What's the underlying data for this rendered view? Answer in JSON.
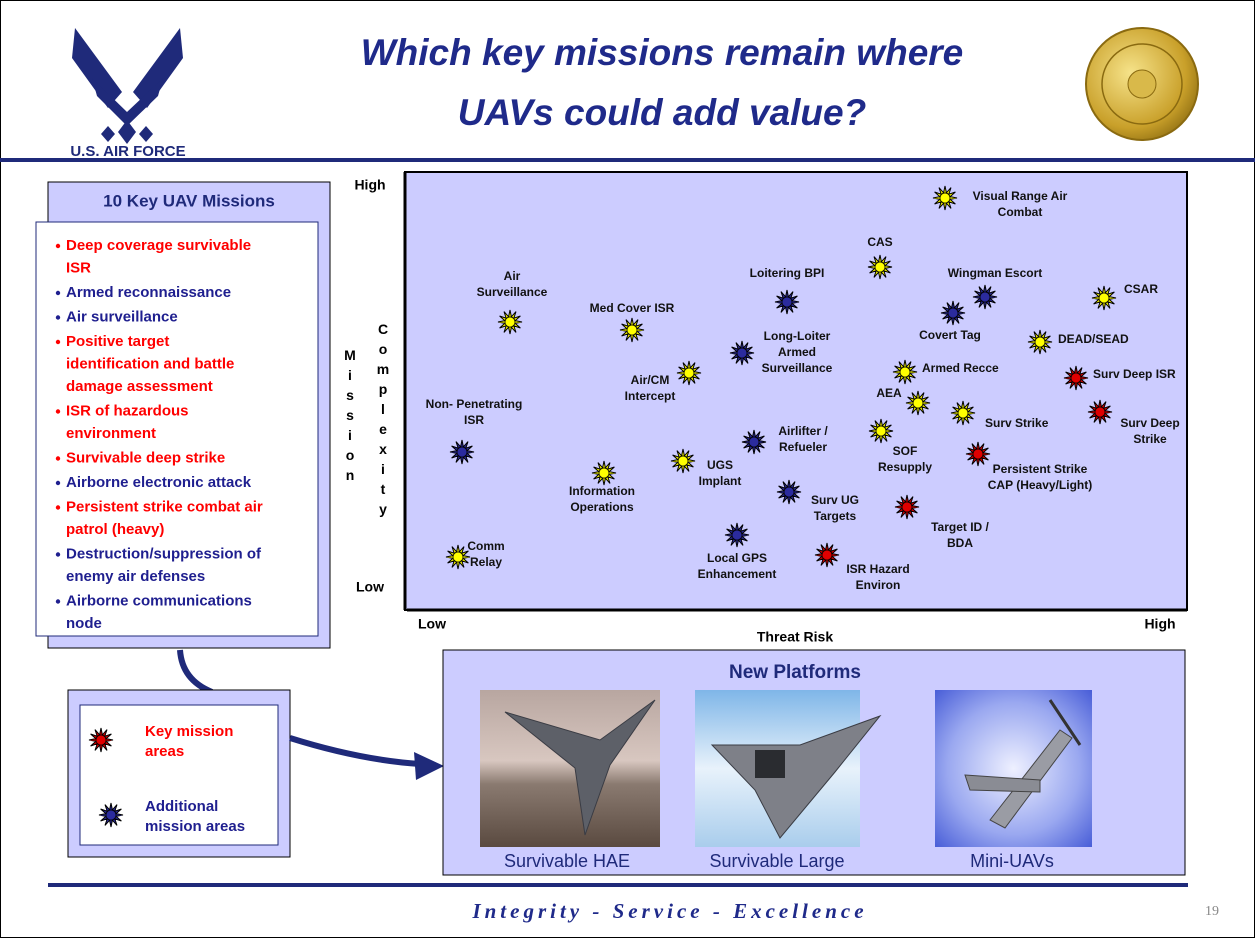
{
  "header": {
    "title": [
      "Which key missions remain where",
      "UAVs could add value?"
    ],
    "logo_text": "U.S. AIR FORCE"
  },
  "missions": {
    "title": "10 Key UAV Missions",
    "items": [
      {
        "lines": [
          "Deep coverage survivable",
          "ISR"
        ],
        "color": "#ff0000"
      },
      {
        "lines": [
          "Armed reconnaissance"
        ],
        "color": "#1f1f8f"
      },
      {
        "lines": [
          "Air surveillance"
        ],
        "color": "#1f1f8f"
      },
      {
        "lines": [
          "Positive target",
          "identification and battle",
          "damage assessment"
        ],
        "color": "#ff0000"
      },
      {
        "lines": [
          "ISR of hazardous",
          "environment"
        ],
        "color": "#ff0000"
      },
      {
        "lines": [
          "Survivable deep strike"
        ],
        "color": "#ff0000"
      },
      {
        "lines": [
          "Airborne electronic attack"
        ],
        "color": "#1f1f8f"
      },
      {
        "lines": [
          "Persistent strike combat air",
          "patrol (heavy)"
        ],
        "color": "#ff0000"
      },
      {
        "lines": [
          "Destruction/suppression of",
          "enemy air defenses"
        ],
        "color": "#1f1f8f"
      },
      {
        "lines": [
          "Airborne communications",
          "node"
        ],
        "color": "#1f1f8f"
      }
    ]
  },
  "plot": {
    "y_axis_title": [
      "Mission",
      "Complexity"
    ],
    "y_high": "High",
    "y_low": "Low",
    "x_low": "Low",
    "x_high": "High",
    "x_axis_title": "Threat Risk",
    "nodes": [
      {
        "label": [
          "Visual Range Air",
          "Combat"
        ],
        "color": "#ffff00"
      },
      {
        "label": [
          "CAS"
        ],
        "color": "#ffff00"
      },
      {
        "label": [
          "Loitering BPI"
        ],
        "color": "#2b2b9e"
      },
      {
        "label": [
          "Wingman Escort"
        ],
        "color": "#2b2b9e"
      },
      {
        "label": [
          "Covert Tag"
        ],
        "color": "#2b2b9e"
      },
      {
        "label": [
          "CSAR"
        ],
        "color": "#ffff00"
      },
      {
        "label": [
          "Air",
          "Surveillance"
        ],
        "color": "#ffff00"
      },
      {
        "label": [
          "Med Cover ISR"
        ],
        "color": "#ffff00"
      },
      {
        "label": [
          "DEAD/SEAD"
        ],
        "color": "#ffff00"
      },
      {
        "label": [
          "Long-Loiter",
          "Armed",
          "Surveillance"
        ],
        "color": "#2b2b9e"
      },
      {
        "label": [
          "Air/CM",
          "Intercept"
        ],
        "color": "#ffff00"
      },
      {
        "label": [
          "Armed Recce"
        ],
        "color": "#ffff00"
      },
      {
        "label": [
          "Surv Deep ISR"
        ],
        "color": "#e00000"
      },
      {
        "label": [
          "AEA"
        ],
        "color": "#ffff00"
      },
      {
        "label": [
          "Non- Penetrating",
          "ISR"
        ],
        "color": "#2b2b9e"
      },
      {
        "label": [
          "Surv Strike"
        ],
        "color": "#ffff00"
      },
      {
        "label": [
          "Surv Deep",
          "Strike"
        ],
        "color": "#e00000"
      },
      {
        "label": [
          "SOF",
          "Resupply"
        ],
        "color": "#ffff00"
      },
      {
        "label": [
          "Airlifter /",
          "Refueler"
        ],
        "color": "#2b2b9e"
      },
      {
        "label": [
          "Persistent Strike",
          "CAP (Heavy/Light)"
        ],
        "color": "#e00000"
      },
      {
        "label": [
          "UGS",
          "Implant"
        ],
        "color": "#ffff00"
      },
      {
        "label": [
          "Information",
          "Operations"
        ],
        "color": "#ffff00"
      },
      {
        "label": [
          "Surv UG",
          "Targets"
        ],
        "color": "#2b2b9e"
      },
      {
        "label": [
          "Target ID /",
          "BDA"
        ],
        "color": "#e00000"
      },
      {
        "label": [
          "Local GPS",
          "Enhancement"
        ],
        "color": "#2b2b9e"
      },
      {
        "label": [
          "ISR Hazard",
          "Environ"
        ],
        "color": "#e00000"
      },
      {
        "label": [
          "Comm",
          "Relay"
        ],
        "color": "#ffff00"
      }
    ]
  },
  "legend": {
    "items": [
      {
        "label": [
          "Key mission",
          "areas"
        ],
        "color": "#e00000",
        "text_color": "#ff0000"
      },
      {
        "label": [
          "Additional",
          "mission areas"
        ],
        "color": "#2b2b9e",
        "text_color": "#1f1f8f"
      }
    ]
  },
  "platforms": {
    "title": "New Platforms",
    "items": [
      "Survivable HAE",
      "Survivable Large",
      "Mini-UAVs"
    ]
  },
  "footer": {
    "motto": "Integrity - Service - Excellence",
    "page": "19"
  }
}
